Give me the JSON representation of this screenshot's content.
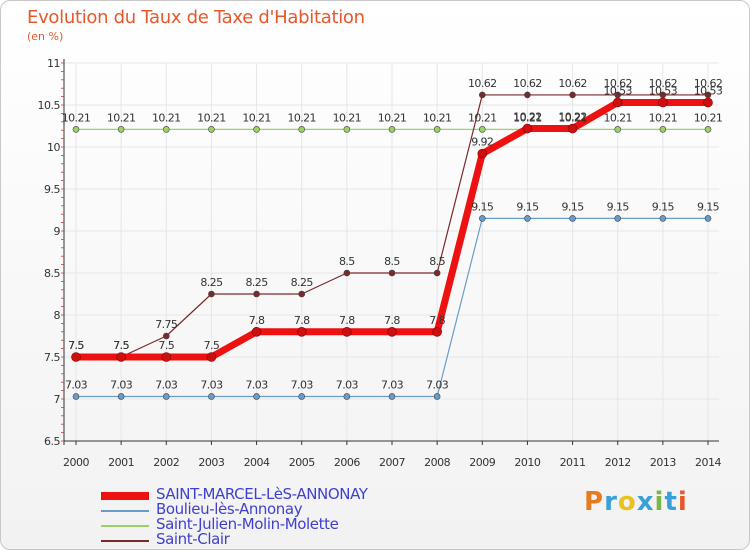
{
  "title": "Evolution du Taux de Taxe d'Habitation",
  "unit": "(en %)",
  "logo": {
    "text": "Proxiti",
    "colors": [
      "#e87b1e",
      "#3aa0d8",
      "#e8c21e",
      "#3aa0d8",
      "#7ab648",
      "#3aa0d8",
      "#e8572a"
    ]
  },
  "chart_data": {
    "type": "line",
    "title": "Evolution du Taux de Taxe d'Habitation",
    "ylabel": "(en %)",
    "xlabel": "",
    "ylim": [
      6.5,
      11
    ],
    "yticks": [
      "6.5",
      "7",
      "7.5",
      "8",
      "8.5",
      "9",
      "9.5",
      "10",
      "10.5",
      "11"
    ],
    "categories": [
      "2000",
      "2001",
      "2002",
      "2003",
      "2004",
      "2005",
      "2006",
      "2007",
      "2008",
      "2009",
      "2010",
      "2011",
      "2012",
      "2013",
      "2014"
    ],
    "grid": true,
    "legend_position": "bottom-left",
    "series": [
      {
        "name": "SAINT-MARCEL-LèS-ANNONAY",
        "color": "#ee1111",
        "width": 7,
        "values": [
          7.5,
          7.5,
          7.5,
          7.5,
          7.8,
          7.8,
          7.8,
          7.8,
          7.8,
          9.92,
          10.22,
          10.22,
          10.53,
          10.53,
          10.53
        ],
        "labels": [
          "7.5",
          "7.5",
          "7.5",
          "7.5",
          "7.8",
          "7.8",
          "7.8",
          "7.8",
          "7.8",
          "9.92",
          "10.22",
          "10.22",
          "10.53",
          "10.53",
          "10.53"
        ]
      },
      {
        "name": "Boulieu-lès-Annonay",
        "color": "#6a9cc8",
        "width": 1.2,
        "values": [
          7.03,
          7.03,
          7.03,
          7.03,
          7.03,
          7.03,
          7.03,
          7.03,
          7.03,
          9.15,
          9.15,
          9.15,
          9.15,
          9.15,
          9.15
        ],
        "labels": [
          "7.03",
          "7.03",
          "7.03",
          "7.03",
          "7.03",
          "7.03",
          "7.03",
          "7.03",
          "7.03",
          "9.15",
          "9.15",
          "9.15",
          "9.15",
          "9.15",
          "9.15"
        ]
      },
      {
        "name": "Saint-Julien-Molin-Molette",
        "color": "#99d462",
        "width": 1.2,
        "values": [
          10.21,
          10.21,
          10.21,
          10.21,
          10.21,
          10.21,
          10.21,
          10.21,
          10.21,
          10.21,
          10.21,
          10.21,
          10.21,
          10.21,
          10.21
        ],
        "labels": [
          "10.21",
          "10.21",
          "10.21",
          "10.21",
          "10.21",
          "10.21",
          "10.21",
          "10.21",
          "10.21",
          "10.21",
          "10.21",
          "10.21",
          "10.21",
          "10.21",
          "10.21"
        ]
      },
      {
        "name": "Saint-Clair",
        "color": "#7a2a2a",
        "width": 1.2,
        "values": [
          7.5,
          7.5,
          7.75,
          8.25,
          8.25,
          8.25,
          8.5,
          8.5,
          8.5,
          10.62,
          10.62,
          10.62,
          10.62,
          10.62,
          10.62
        ],
        "labels": [
          "7.5",
          "7.5",
          "7.75",
          "8.25",
          "8.25",
          "8.25",
          "8.5",
          "8.5",
          "8.5",
          "10.62",
          "10.62",
          "10.62",
          "10.62",
          "10.62",
          "10.62"
        ]
      }
    ]
  }
}
